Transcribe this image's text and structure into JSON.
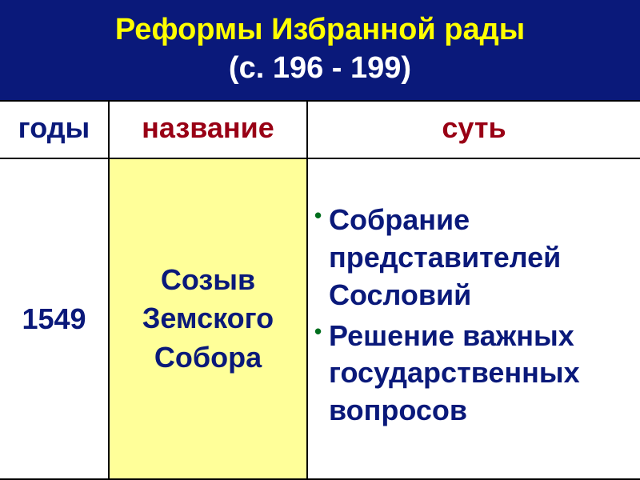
{
  "title": {
    "line1": "Реформы Избранной рады",
    "line2": "(с. 196 - 199)",
    "line1_color": "#ffff00",
    "line2_color": "#ffffff",
    "bg_color": "#0a197a"
  },
  "table": {
    "columns": {
      "years": {
        "label": "годы",
        "width_pct": 17,
        "color": "#0a197a",
        "bg": "#ffffff"
      },
      "name": {
        "label": "название",
        "width_pct": 31,
        "color": "#990015",
        "bg": "#ffffff"
      },
      "essence": {
        "label": "суть",
        "width_pct": 52,
        "color": "#990015",
        "bg": "#ffffff"
      }
    },
    "row": {
      "year": "1549",
      "year_color": "#0a197a",
      "year_bg": "#ffffff",
      "name_lines": [
        "Созыв",
        "Земского",
        "Собора"
      ],
      "name_color": "#0a197a",
      "name_bg": "#ffff99",
      "essence_items": [
        "Собрание представителей Сословий",
        "Решение важных государственных вопросов"
      ],
      "essence_color": "#0a197a",
      "essence_bg": "#ffffff",
      "bullet_color": "#006e1d"
    },
    "border_color": "#000000"
  }
}
